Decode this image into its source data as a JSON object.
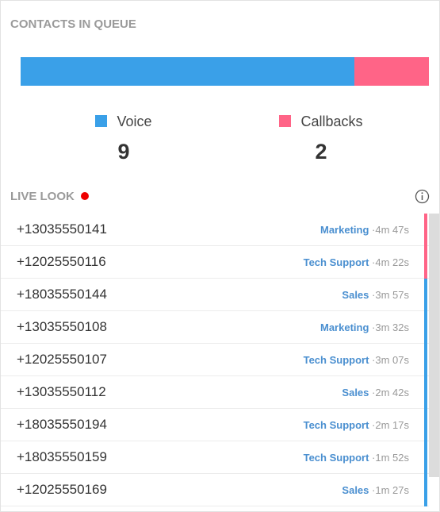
{
  "queue": {
    "title": "CONTACTS IN QUEUE",
    "series": [
      {
        "name": "Voice",
        "color": "#3aa0e8",
        "value": 9
      },
      {
        "name": "Callbacks",
        "color": "#ff6487",
        "value": 2
      }
    ]
  },
  "live_look": {
    "title": "LIVE LOOK",
    "rows": [
      {
        "phone": "+13035550141",
        "queue": "Marketing",
        "wait": "4m 47s",
        "color": "#ff6487"
      },
      {
        "phone": "+12025550116",
        "queue": "Tech Support",
        "wait": "4m 22s",
        "color": "#ff6487"
      },
      {
        "phone": "+18035550144",
        "queue": "Sales",
        "wait": "3m 57s",
        "color": "#3aa0e8"
      },
      {
        "phone": "+13035550108",
        "queue": "Marketing",
        "wait": "3m 32s",
        "color": "#3aa0e8"
      },
      {
        "phone": "+12025550107",
        "queue": "Tech Support",
        "wait": "3m 07s",
        "color": "#3aa0e8"
      },
      {
        "phone": "+13035550112",
        "queue": "Sales",
        "wait": "2m 42s",
        "color": "#3aa0e8"
      },
      {
        "phone": "+18035550194",
        "queue": "Tech Support",
        "wait": "2m 17s",
        "color": "#3aa0e8"
      },
      {
        "phone": "+18035550159",
        "queue": "Tech Support",
        "wait": "1m 52s",
        "color": "#3aa0e8"
      },
      {
        "phone": "+12025550169",
        "queue": "Sales",
        "wait": "1m 27s",
        "color": "#3aa0e8"
      }
    ]
  }
}
